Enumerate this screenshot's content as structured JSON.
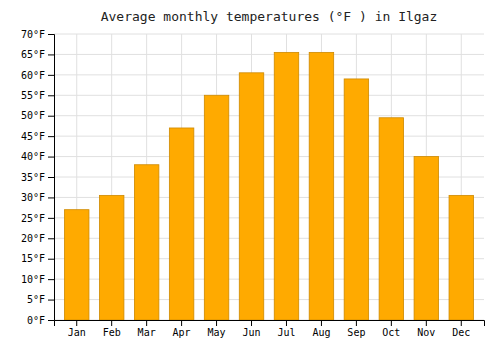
{
  "chart_data": {
    "type": "bar",
    "title": "Average monthly temperatures (°F ) in Ilgaz",
    "categories": [
      "Jan",
      "Feb",
      "Mar",
      "Apr",
      "May",
      "Jun",
      "Jul",
      "Aug",
      "Sep",
      "Oct",
      "Nov",
      "Dec"
    ],
    "values": [
      27,
      30.5,
      38,
      47,
      55,
      60.5,
      65.5,
      65.5,
      59,
      49.5,
      40,
      30.5
    ],
    "color": "#FFAA00",
    "ylim": [
      0,
      70
    ],
    "yticks": [
      {
        "value": 0,
        "label": "0°F"
      },
      {
        "value": 5,
        "label": "5°F"
      },
      {
        "value": 10,
        "label": "10°F"
      },
      {
        "value": 15,
        "label": "15°F"
      },
      {
        "value": 20,
        "label": "20°F"
      },
      {
        "value": 25,
        "label": "25°F"
      },
      {
        "value": 30,
        "label": "30°F"
      },
      {
        "value": 35,
        "label": "35°F"
      },
      {
        "value": 40,
        "label": "40°F"
      },
      {
        "value": 45,
        "label": "45°F"
      },
      {
        "value": 50,
        "label": "50°F"
      },
      {
        "value": 55,
        "label": "55°F"
      },
      {
        "value": 60,
        "label": "60°F"
      },
      {
        "value": 65,
        "label": "65°F"
      },
      {
        "value": 70,
        "label": "70°F"
      }
    ],
    "grid": true
  }
}
